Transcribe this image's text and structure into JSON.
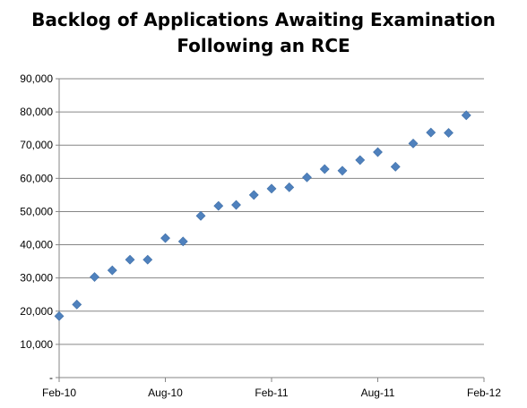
{
  "chart_data": {
    "type": "scatter",
    "title": "Backlog of Applications Awaiting Examination Following an RCE",
    "title_lines": [
      "Backlog of Applications Awaiting Examination",
      "Following an RCE"
    ],
    "xlabel": "",
    "ylabel": "",
    "ylim": [
      0,
      90000
    ],
    "y_ticks": [
      0,
      10000,
      20000,
      30000,
      40000,
      50000,
      60000,
      70000,
      80000,
      90000
    ],
    "y_tick_labels": [
      "-",
      "10,000",
      "20,000",
      "30,000",
      "40,000",
      "50,000",
      "60,000",
      "70,000",
      "80,000",
      "90,000"
    ],
    "x_tick_labels": [
      "Feb-10",
      "Aug-10",
      "Feb-11",
      "Aug-11",
      "Feb-12"
    ],
    "x_tick_dates": [
      "2010-02",
      "2010-08",
      "2011-02",
      "2011-08",
      "2012-02"
    ],
    "xlim": [
      "2010-02",
      "2012-02"
    ],
    "grid": true,
    "marker": "diamond",
    "color": "#4F81BD",
    "series": [
      {
        "x": [
          "2010-02",
          "2010-03",
          "2010-04",
          "2010-05",
          "2010-06",
          "2010-07",
          "2010-08",
          "2010-09",
          "2010-10",
          "2010-11",
          "2010-12",
          "2011-01",
          "2011-02",
          "2011-03",
          "2011-04",
          "2011-05",
          "2011-06",
          "2011-07",
          "2011-08",
          "2011-09",
          "2011-10",
          "2011-11",
          "2011-12",
          "2012-01"
        ],
        "values": [
          18500,
          22000,
          30300,
          32300,
          35500,
          35500,
          42000,
          41000,
          48700,
          51700,
          52000,
          55000,
          56900,
          57300,
          60300,
          62800,
          62300,
          65500,
          67900,
          63500,
          70500,
          73800,
          73700,
          79000
        ]
      }
    ]
  }
}
